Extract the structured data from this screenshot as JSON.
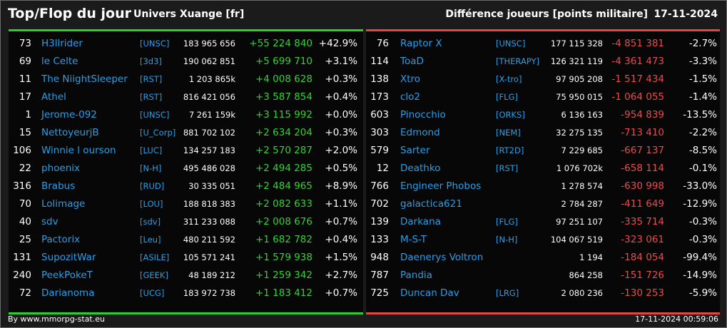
{
  "header": {
    "title": "Top/Flop du jour",
    "universe": "Univers Xuange [fr]",
    "subtitle": "Différence joueurs [points militaire]",
    "date": "17-11-2024"
  },
  "colors": {
    "gain": "#34d334",
    "loss": "#e84c4c",
    "name": "#2a9fe8",
    "background": "#1b1b1b"
  },
  "top": [
    {
      "rank": "73",
      "name": "H3llrider",
      "alliance": "[UNSC]",
      "points": "183 965 656",
      "diff": "+55 224 840",
      "pct": "+42.9%"
    },
    {
      "rank": "69",
      "name": "le Celte",
      "alliance": "[3d3]",
      "points": "190 062 851",
      "diff": "+5 699 710",
      "pct": "+3.1%"
    },
    {
      "rank": "11",
      "name": "The NiightSleeper",
      "alliance": "[RST]",
      "points": "1 203 865k",
      "diff": "+4 008 628",
      "pct": "+0.3%"
    },
    {
      "rank": "17",
      "name": "Athel",
      "alliance": "[RST]",
      "points": "816 421 056",
      "diff": "+3 587 854",
      "pct": "+0.4%"
    },
    {
      "rank": "1",
      "name": "Jerome-092",
      "alliance": "[UNSC]",
      "points": "7 261 159k",
      "diff": "+3 115 992",
      "pct": "+0.0%"
    },
    {
      "rank": "15",
      "name": "NettoyeurjB",
      "alliance": "[U_Corp]",
      "points": "881 702 102",
      "diff": "+2 634 204",
      "pct": "+0.3%"
    },
    {
      "rank": "106",
      "name": "Winnie l ourson",
      "alliance": "[LUC]",
      "points": "134 257 183",
      "diff": "+2 570 287",
      "pct": "+2.0%"
    },
    {
      "rank": "22",
      "name": "phoenix",
      "alliance": "[N-H]",
      "points": "495 486 028",
      "diff": "+2 494 285",
      "pct": "+0.5%"
    },
    {
      "rank": "316",
      "name": "Brabus",
      "alliance": "[RUD]",
      "points": "30 335 051",
      "diff": "+2 484 965",
      "pct": "+8.9%"
    },
    {
      "rank": "70",
      "name": "Lolimage",
      "alliance": "[LOU]",
      "points": "188 818 383",
      "diff": "+2 082 633",
      "pct": "+1.1%"
    },
    {
      "rank": "40",
      "name": "sdv",
      "alliance": "[sdv]",
      "points": "311 233 088",
      "diff": "+2 008 676",
      "pct": "+0.7%"
    },
    {
      "rank": "25",
      "name": "Pactorix",
      "alliance": "[Leu]",
      "points": "480 211 592",
      "diff": "+1 682 782",
      "pct": "+0.4%"
    },
    {
      "rank": "131",
      "name": "SupozitWar",
      "alliance": "[ASILE]",
      "points": "105 571 241",
      "diff": "+1 579 938",
      "pct": "+1.5%"
    },
    {
      "rank": "240",
      "name": "PeekPokeT",
      "alliance": "[GEEK]",
      "points": "48 189 212",
      "diff": "+1 259 342",
      "pct": "+2.7%"
    },
    {
      "rank": "72",
      "name": "Darianoma",
      "alliance": "[UCG]",
      "points": "183 972 738",
      "diff": "+1 183 412",
      "pct": "+0.7%"
    }
  ],
  "flop": [
    {
      "rank": "76",
      "name": "Raptor X",
      "alliance": "[UNSC]",
      "points": "177 115 328",
      "diff": "-4 851 381",
      "pct": "-2.7%"
    },
    {
      "rank": "114",
      "name": "ToaD",
      "alliance": "[THERAPY]",
      "points": "126 321 119",
      "diff": "-4 361 473",
      "pct": "-3.3%"
    },
    {
      "rank": "138",
      "name": "Xtro",
      "alliance": "[X-tro]",
      "points": "97 905 208",
      "diff": "-1 517 434",
      "pct": "-1.5%"
    },
    {
      "rank": "173",
      "name": "clo2",
      "alliance": "[FLG]",
      "points": "75 950 015",
      "diff": "-1 064 055",
      "pct": "-1.4%"
    },
    {
      "rank": "603",
      "name": "Pinocchio",
      "alliance": "[ORKS]",
      "points": "6 136 163",
      "diff": "-954 839",
      "pct": "-13.5%"
    },
    {
      "rank": "303",
      "name": "Edmond",
      "alliance": "[NEM]",
      "points": "32 275 135",
      "diff": "-713 410",
      "pct": "-2.2%"
    },
    {
      "rank": "579",
      "name": "Sarter",
      "alliance": "[RT2D]",
      "points": "7 229 685",
      "diff": "-667 137",
      "pct": "-8.5%"
    },
    {
      "rank": "12",
      "name": "Deathko",
      "alliance": "[RST]",
      "points": "1 076 702k",
      "diff": "-658 114",
      "pct": "-0.1%"
    },
    {
      "rank": "766",
      "name": "Engineer Phobos",
      "alliance": "",
      "points": "1 278 574",
      "diff": "-630 998",
      "pct": "-33.0%"
    },
    {
      "rank": "702",
      "name": "galactica621",
      "alliance": "",
      "points": "2 784 287",
      "diff": "-411 649",
      "pct": "-12.9%"
    },
    {
      "rank": "139",
      "name": "Darkana",
      "alliance": "[FLG]",
      "points": "97 251 107",
      "diff": "-335 714",
      "pct": "-0.3%"
    },
    {
      "rank": "133",
      "name": "M-S-T",
      "alliance": "[N-H]",
      "points": "104 067 519",
      "diff": "-323 061",
      "pct": "-0.3%"
    },
    {
      "rank": "948",
      "name": "Daenerys Voltron",
      "alliance": "",
      "points": "1 194",
      "diff": "-184 054",
      "pct": "-99.4%"
    },
    {
      "rank": "787",
      "name": "Pandia",
      "alliance": "",
      "points": "864 258",
      "diff": "-151 726",
      "pct": "-14.9%"
    },
    {
      "rank": "725",
      "name": "Duncan Dav",
      "alliance": "[LRG]",
      "points": "2 080 236",
      "diff": "-130 253",
      "pct": "-5.9%"
    }
  ],
  "footer": {
    "source": "By www.mmorpg-stat.eu",
    "timestamp": "17-11-2024 00:59:06"
  }
}
